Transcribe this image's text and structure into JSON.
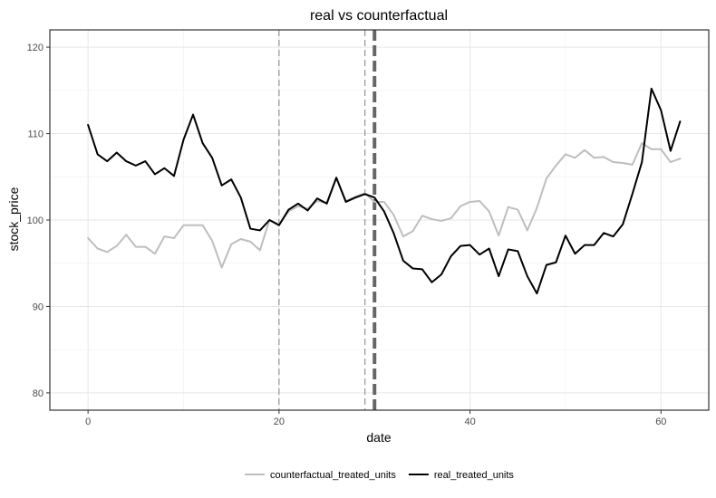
{
  "chart_data": {
    "type": "line",
    "title": "real vs counterfactual",
    "xlabel": "date",
    "ylabel": "stock_price",
    "xlim": [
      -4,
      65
    ],
    "ylim": [
      78,
      122
    ],
    "x_ticks": [
      0,
      20,
      40,
      60
    ],
    "y_ticks": [
      80,
      90,
      100,
      110,
      120
    ],
    "grid": true,
    "legend_position": "bottom",
    "vlines": [
      {
        "x": 20,
        "style": "dashed-thin"
      },
      {
        "x": 29,
        "style": "dashed-thin"
      },
      {
        "x": 30,
        "style": "dashed-thick"
      }
    ],
    "series": [
      {
        "name": "counterfactual_treated_units",
        "color": "#bebebe",
        "x": [
          0,
          1,
          2,
          3,
          4,
          5,
          6,
          7,
          8,
          9,
          10,
          11,
          12,
          13,
          14,
          15,
          16,
          17,
          18,
          19,
          20,
          21,
          22,
          23,
          24,
          25,
          26,
          27,
          28,
          29,
          30,
          31,
          32,
          33,
          34,
          35,
          36,
          37,
          38,
          39,
          40,
          41,
          42,
          43,
          44,
          45,
          46,
          47,
          48,
          49,
          50,
          51,
          52,
          53,
          54,
          55,
          56,
          57,
          58,
          59,
          60,
          61,
          62
        ],
        "values": [
          97.9,
          96.7,
          96.3,
          97.0,
          98.3,
          96.9,
          96.9,
          96.1,
          98.1,
          97.9,
          99.4,
          99.4,
          99.4,
          97.6,
          94.5,
          97.2,
          97.8,
          97.5,
          96.5,
          100.0,
          99.5,
          101.0,
          101.6,
          101.3,
          102.2,
          102.0,
          104.9,
          102.2,
          102.7,
          103.1,
          102.1,
          102.1,
          100.6,
          98.1,
          98.7,
          100.5,
          100.1,
          99.9,
          100.2,
          101.6,
          102.1,
          102.2,
          101.0,
          98.2,
          101.5,
          101.2,
          98.8,
          101.4,
          104.8,
          106.3,
          107.6,
          107.2,
          108.1,
          107.2,
          107.3,
          106.7,
          106.6,
          106.4,
          108.9,
          108.2,
          108.2,
          106.7,
          107.1
        ]
      },
      {
        "name": "real_treated_units",
        "color": "#000000",
        "x": [
          0,
          1,
          2,
          3,
          4,
          5,
          6,
          7,
          8,
          9,
          10,
          11,
          12,
          13,
          14,
          15,
          16,
          17,
          18,
          19,
          20,
          21,
          22,
          23,
          24,
          25,
          26,
          27,
          28,
          29,
          30,
          31,
          32,
          33,
          34,
          35,
          36,
          37,
          38,
          39,
          40,
          41,
          42,
          43,
          44,
          45,
          46,
          47,
          48,
          49,
          50,
          51,
          52,
          53,
          54,
          55,
          56,
          57,
          58,
          59,
          60,
          61,
          62
        ],
        "values": [
          111.0,
          107.6,
          106.8,
          107.8,
          106.8,
          106.3,
          106.8,
          105.3,
          106.0,
          105.1,
          109.3,
          112.2,
          108.9,
          107.2,
          104.0,
          104.7,
          102.6,
          99.0,
          98.8,
          100.0,
          99.4,
          101.2,
          101.9,
          101.1,
          102.5,
          101.9,
          104.9,
          102.1,
          102.6,
          103.0,
          102.6,
          101.0,
          98.5,
          95.3,
          94.4,
          94.3,
          92.8,
          93.7,
          95.8,
          97.0,
          97.1,
          96.0,
          96.7,
          93.5,
          96.6,
          96.4,
          93.5,
          91.5,
          94.8,
          95.1,
          98.2,
          96.1,
          97.1,
          97.1,
          98.5,
          98.1,
          99.5,
          103.0,
          106.7,
          115.2,
          112.7,
          108.0,
          111.4
        ]
      }
    ]
  }
}
